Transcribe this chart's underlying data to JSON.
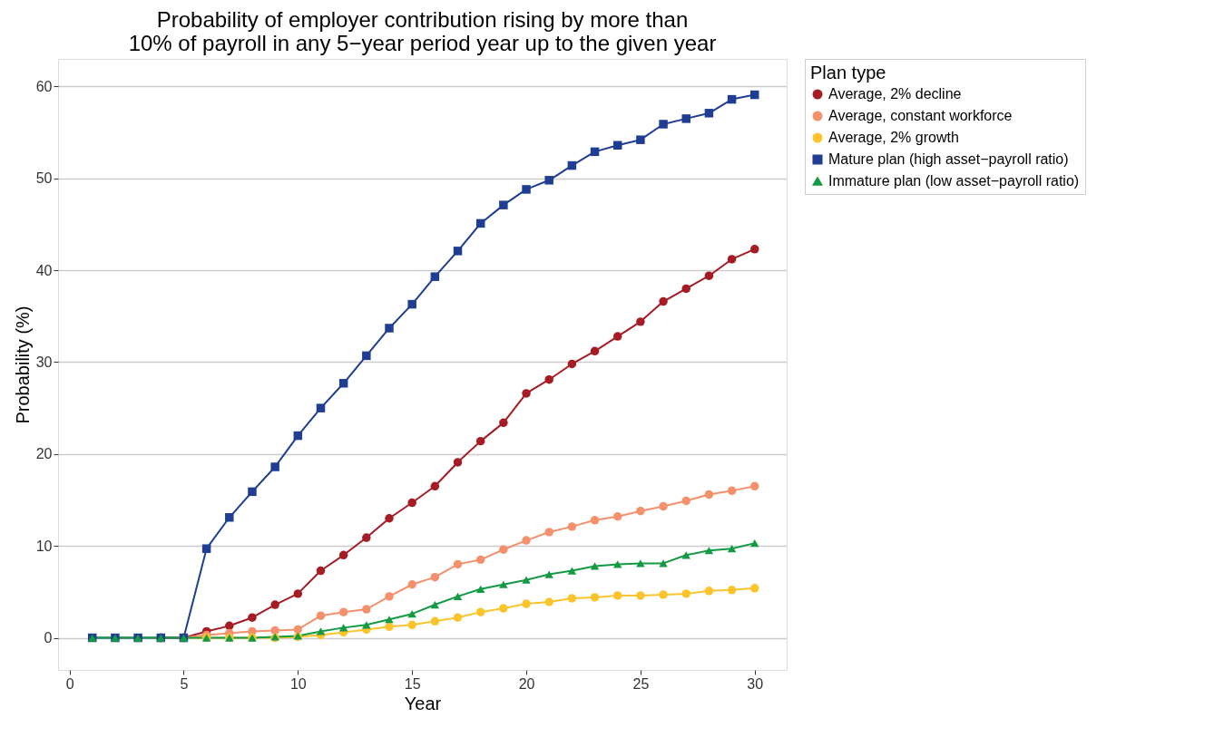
{
  "chart_data": {
    "type": "line",
    "title": "Probability of employer contribution rising by more than\n10% of payroll in any 5−year period year up to the given year",
    "xlabel": "Year",
    "ylabel": "Probability (%)",
    "legend_title": "Plan type",
    "x": [
      1,
      2,
      3,
      4,
      5,
      6,
      7,
      8,
      9,
      10,
      11,
      12,
      13,
      14,
      15,
      16,
      17,
      18,
      19,
      20,
      21,
      22,
      23,
      24,
      25,
      26,
      27,
      28,
      29,
      30
    ],
    "series": [
      {
        "name": "Average, 2% decline",
        "color": "#a51c24",
        "marker": "circle",
        "values": [
          null,
          null,
          null,
          0,
          0,
          0.7,
          1.3,
          2.2,
          3.6,
          4.8,
          7.3,
          9.0,
          10.9,
          13.0,
          14.7,
          16.5,
          19.1,
          21.4,
          23.4,
          26.6,
          28.1,
          29.8,
          31.2,
          32.8,
          34.4,
          36.6,
          38.0,
          39.4,
          41.2,
          42.3
        ]
      },
      {
        "name": "Average, constant workforce",
        "color": "#f4906c",
        "marker": "circle",
        "values": [
          null,
          null,
          null,
          0,
          0,
          0.3,
          0.5,
          0.7,
          0.8,
          0.9,
          2.4,
          2.8,
          3.1,
          4.5,
          5.8,
          6.6,
          8.0,
          8.5,
          9.6,
          10.6,
          11.5,
          12.1,
          12.8,
          13.2,
          13.8,
          14.3,
          14.9,
          15.6,
          16.0,
          16.5
        ]
      },
      {
        "name": "Average, 2% growth",
        "color": "#fcc42c",
        "marker": "circle",
        "values": [
          null,
          null,
          null,
          null,
          0,
          0,
          0,
          0,
          0,
          0.1,
          0.3,
          0.6,
          0.9,
          1.2,
          1.4,
          1.8,
          2.2,
          2.8,
          3.2,
          3.7,
          3.9,
          4.3,
          4.4,
          4.6,
          4.6,
          4.7,
          4.8,
          5.1,
          5.2,
          5.4
        ]
      },
      {
        "name": "Mature plan (high asset−payroll ratio)",
        "color": "#1f3e93",
        "marker": "square",
        "values": [
          0,
          0,
          0,
          0,
          0,
          9.7,
          13.1,
          15.9,
          18.6,
          22.0,
          25.0,
          27.7,
          30.7,
          33.7,
          36.3,
          39.3,
          42.1,
          45.1,
          47.1,
          48.8,
          49.8,
          51.4,
          52.9,
          53.6,
          54.2,
          55.9,
          56.5,
          57.1,
          58.6,
          59.1
        ]
      },
      {
        "name": "Immature plan (low asset−payroll ratio)",
        "color": "#139a43",
        "marker": "triangle",
        "values": [
          0,
          0,
          0,
          0,
          0,
          0,
          0,
          0,
          0.1,
          0.2,
          0.7,
          1.1,
          1.4,
          2.0,
          2.6,
          3.6,
          4.5,
          5.3,
          5.8,
          6.3,
          6.9,
          7.3,
          7.8,
          8.0,
          8.1,
          8.1,
          9.0,
          9.5,
          9.7,
          10.3
        ]
      }
    ],
    "xlim": [
      -0.5,
      31.4
    ],
    "xticks": [
      0,
      5,
      10,
      15,
      20,
      25,
      30
    ],
    "ylim": [
      -3.5,
      63
    ],
    "yticks": [
      0,
      10,
      20,
      30,
      40,
      50,
      60
    ],
    "grid": "y",
    "legend": "right",
    "line_style": "solid"
  }
}
